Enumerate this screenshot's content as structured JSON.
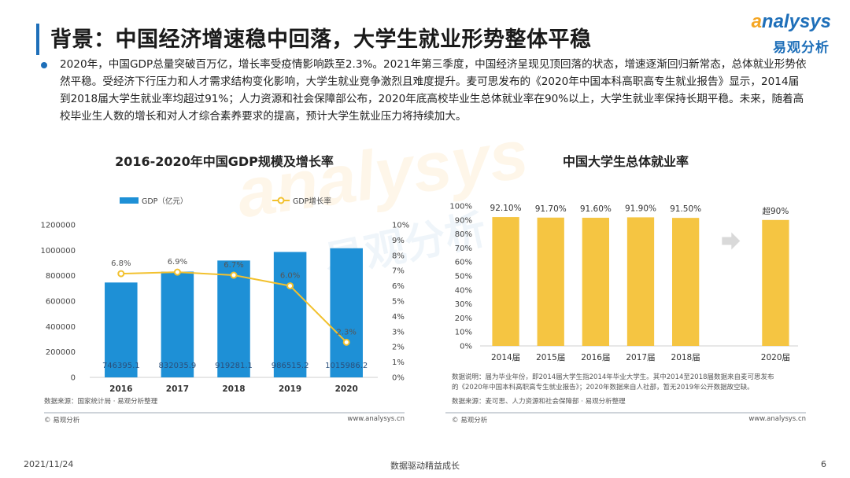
{
  "header": {
    "title": "背景：中国经济增速稳中回落，大学生就业形势整体平稳",
    "logo_en_a": "a",
    "logo_en_rest": "nalysys",
    "logo_cn": "易观分析"
  },
  "description": "2020年，中国GDP总量突破百万亿，增长率受疫情影响跌至2.3%。2021年第三季度，中国经济呈现见顶回落的状态，增速逐渐回归新常态，总体就业形势依然平稳。受经济下行压力和人才需求结构变化影响，大学生就业竞争激烈且难度提升。麦可思发布的《2020年中国本科高职高专生就业报告》显示，2014届到2018届大学生就业率均超过91%；人力资源和社会保障部公布，2020年底高校毕业生总体就业率在90%以上，大学生就业率保持长期平稳。未来，随着高校毕业生人数的增长和对人才综合素养要求的提高，预计大学生就业压力将持续加大。",
  "watermark": {
    "en": "analysys",
    "cn": "易观分析"
  },
  "colors": {
    "accent_blue": "#1e90d6",
    "accent_yellow": "#f5c542",
    "line_yellow": "#f2c12e",
    "brand_blue": "#1e6fb9",
    "brand_orange": "#f5a623"
  },
  "chart_data": [
    {
      "type": "bar",
      "title": "2016-2020年中国GDP规模及增长率",
      "categories": [
        "2016",
        "2017",
        "2018",
        "2019",
        "2020"
      ],
      "series": [
        {
          "name": "GDP（亿元）",
          "type": "bar",
          "axis": "left",
          "values": [
            746395.1,
            832035.9,
            919281.1,
            986515.2,
            1015986.2
          ],
          "labels": [
            "746395.1",
            "832035.9",
            "919281.1",
            "986515.2",
            "1015986.2"
          ]
        },
        {
          "name": "GDP增长率",
          "type": "line",
          "axis": "right",
          "values": [
            6.8,
            6.9,
            6.7,
            6.0,
            2.3
          ],
          "labels": [
            "6.8%",
            "6.9%",
            "6.7%",
            "6.0%",
            "2.3%"
          ]
        }
      ],
      "ylim": [
        0,
        1200000
      ],
      "y_ticks": [
        "0",
        "200000",
        "400000",
        "600000",
        "800000",
        "1000000",
        "1200000"
      ],
      "y2lim": [
        0,
        10
      ],
      "y2_ticks": [
        "0%",
        "1%",
        "2%",
        "3%",
        "4%",
        "5%",
        "6%",
        "7%",
        "8%",
        "9%",
        "10%"
      ],
      "legend_position": "top",
      "grid": false,
      "source": "数据来源：国家统计局 · 易观分析整理",
      "copyright": "© 易观分析",
      "website": "www.analysys.cn"
    },
    {
      "type": "bar",
      "title": "中国大学生总体就业率",
      "categories": [
        "2014届",
        "2015届",
        "2016届",
        "2017届",
        "2018届",
        "2020届"
      ],
      "values": [
        92.1,
        91.7,
        91.6,
        91.9,
        91.5,
        90
      ],
      "labels": [
        "92.10%",
        "91.70%",
        "91.60%",
        "91.90%",
        "91.50%",
        "超90%"
      ],
      "gap_before_last": true,
      "ylim": [
        0,
        100
      ],
      "y_ticks": [
        "0%",
        "10%",
        "20%",
        "30%",
        "40%",
        "50%",
        "60%",
        "70%",
        "80%",
        "90%",
        "100%"
      ],
      "grid": false,
      "note": [
        "数据说明：届为毕业年份，即2014届大学生指2014年毕业大学生。其中2014至2018届数据来自麦可思发布",
        "的《2020年中国本科高职高专生就业报告》；2020年数据来自人社部，暂无2019年公开数据故空缺。"
      ],
      "source": "数据来源：麦可思、人力资源和社会保障部 · 易观分析整理",
      "copyright": "© 易观分析",
      "website": "www.analysys.cn"
    }
  ],
  "footer": {
    "date": "2021/11/24",
    "slogan": "数据驱动精益成长",
    "page": "6"
  }
}
